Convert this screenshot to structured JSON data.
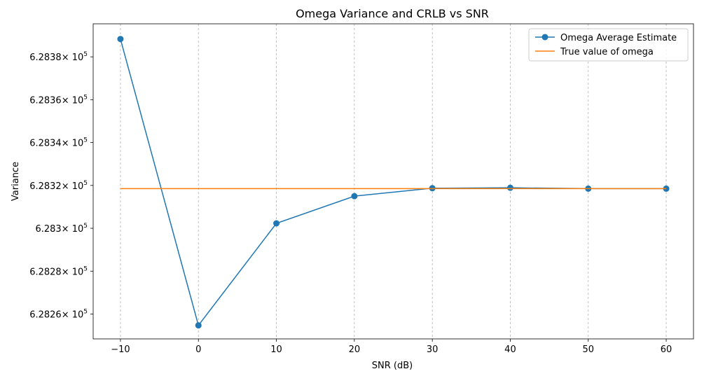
{
  "chart_data": {
    "type": "line",
    "title": "Omega Variance and CRLB vs SNR",
    "xlabel": "SNR (dB)",
    "ylabel": "Variance",
    "x": [
      -10,
      0,
      10,
      20,
      30,
      40,
      50,
      60
    ],
    "xlim": [
      -13.5,
      63.5
    ],
    "ylim": [
      628248.4,
      628395.4
    ],
    "x_ticks": [
      -10,
      0,
      10,
      20,
      30,
      40,
      50,
      60
    ],
    "x_tick_labels": [
      "−10",
      "0",
      "10",
      "20",
      "30",
      "40",
      "50",
      "60"
    ],
    "y_ticks": [
      628260,
      628280,
      628300,
      628320,
      628340,
      628360,
      628380
    ],
    "y_tick_mantissas": [
      "6.2826",
      "6.2828",
      "6.283",
      "6.2832",
      "6.2834",
      "6.2836",
      "6.2838"
    ],
    "y_tick_suffix": "× 10",
    "y_tick_exponent": "5",
    "grid": "vertical dashed at x ticks",
    "legend_position": "top-right",
    "series": [
      {
        "name": "Omega Average Estimate",
        "color": "#1f77b4",
        "marker": "circle",
        "values": [
          628388.3,
          628254.7,
          628302.3,
          628315.0,
          628318.7,
          628318.9,
          628318.5,
          628318.5
        ]
      },
      {
        "name": "True value of omega",
        "color": "#ff7f0e",
        "marker": "none",
        "values": [
          628318.5,
          628318.5,
          628318.5,
          628318.5,
          628318.5,
          628318.5,
          628318.5,
          628318.5
        ]
      }
    ]
  }
}
